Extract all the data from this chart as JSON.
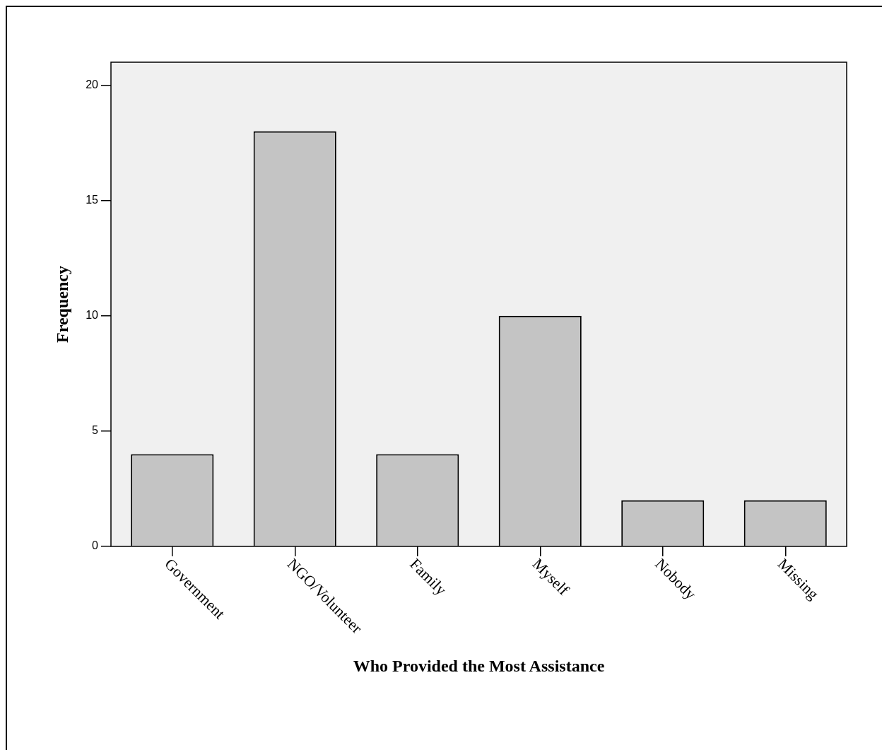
{
  "chart_data": {
    "type": "bar",
    "xlabel": "Who Provided the Most Assistance",
    "ylabel": "Frequency",
    "categories": [
      "Government",
      "NGO/Volunteer",
      "Family",
      "Myself",
      "Nobody",
      "Missing"
    ],
    "values": [
      4,
      18,
      4,
      10,
      2,
      2
    ],
    "color": "#c4c4c4",
    "ylim": [
      0,
      21
    ],
    "yticks": [
      0,
      5,
      10,
      15,
      20
    ],
    "grid": false,
    "legend": false
  }
}
